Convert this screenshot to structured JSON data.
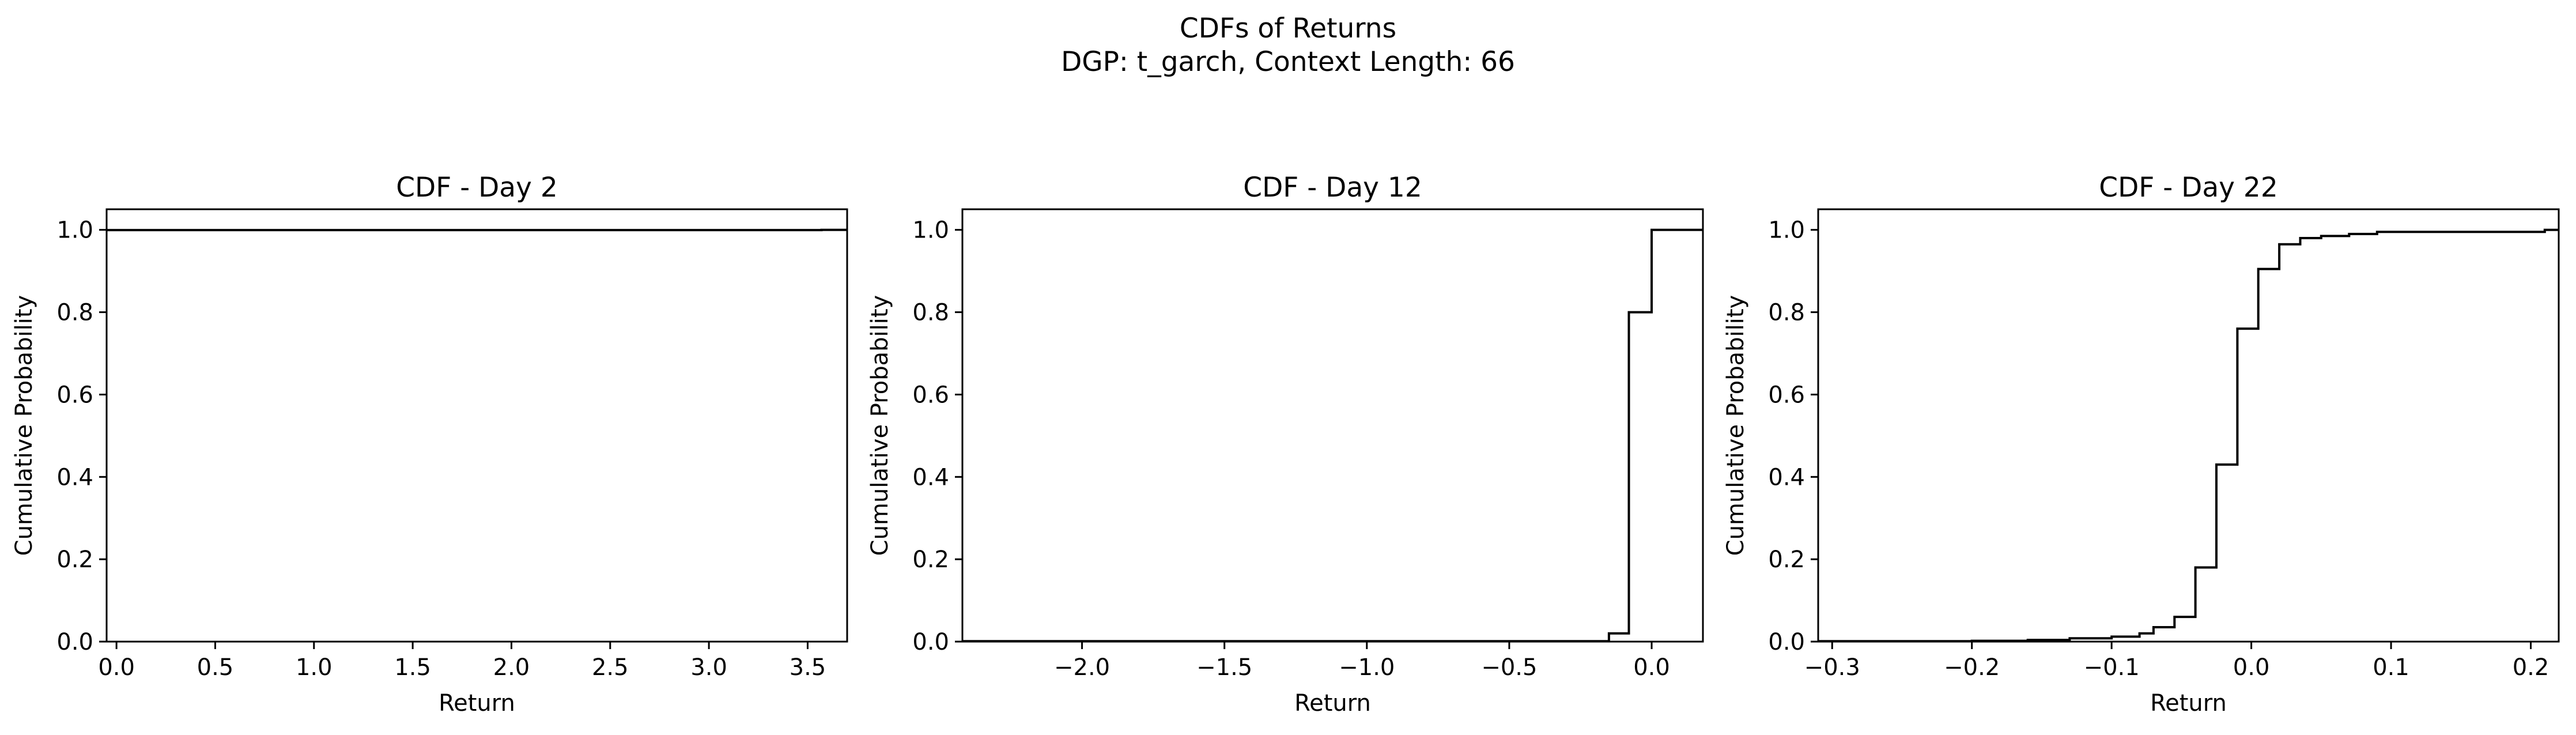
{
  "figure": {
    "title_line1": "CDFs of Returns",
    "title_line2": "DGP: t_garch, Context Length: 66"
  },
  "colors": {
    "line": "#000000",
    "axes": "#000000",
    "background": "#ffffff"
  },
  "chart_data": [
    {
      "type": "line",
      "step": true,
      "title": "CDF - Day 2",
      "xlabel": "Return",
      "ylabel": "Cumulative Probability",
      "xlim": [
        -0.05,
        3.7
      ],
      "ylim": [
        0.0,
        1.05
      ],
      "xticks": [
        0.0,
        0.5,
        1.0,
        1.5,
        2.0,
        2.5,
        3.0,
        3.5
      ],
      "xtick_labels": [
        "0.0",
        "0.5",
        "1.0",
        "1.5",
        "2.0",
        "2.5",
        "3.0",
        "3.5"
      ],
      "yticks": [
        0.0,
        0.2,
        0.4,
        0.6,
        0.8,
        1.0
      ],
      "ytick_labels": [
        "0.0",
        "0.2",
        "0.4",
        "0.6",
        "0.8",
        "1.0"
      ],
      "grid": false,
      "series": [
        {
          "x": [
            -0.05,
            0.0,
            3.57,
            3.7
          ],
          "y": [
            0.9995,
            0.9995,
            1.0,
            1.0
          ]
        }
      ]
    },
    {
      "type": "line",
      "step": true,
      "title": "CDF - Day 12",
      "xlabel": "Return",
      "ylabel": "Cumulative Probability",
      "xlim": [
        -2.42,
        0.18
      ],
      "ylim": [
        0.0,
        1.05
      ],
      "xticks": [
        -2.0,
        -1.5,
        -1.0,
        -0.5,
        0.0
      ],
      "xtick_labels": [
        "−2.0",
        "−1.5",
        "−1.0",
        "−0.5",
        "0.0"
      ],
      "yticks": [
        0.0,
        0.2,
        0.4,
        0.6,
        0.8,
        1.0
      ],
      "ytick_labels": [
        "0.0",
        "0.2",
        "0.4",
        "0.6",
        "0.8",
        "1.0"
      ],
      "grid": false,
      "series": [
        {
          "x": [
            -2.42,
            -2.3,
            -0.15,
            -0.08,
            0.0,
            0.15,
            0.18
          ],
          "y": [
            0.001,
            0.001,
            0.02,
            0.8,
            1.0,
            1.0,
            1.0
          ]
        }
      ]
    },
    {
      "type": "line",
      "step": true,
      "title": "CDF - Day 22",
      "xlabel": "Return",
      "ylabel": "Cumulative Probability",
      "xlim": [
        -0.31,
        0.22
      ],
      "ylim": [
        0.0,
        1.05
      ],
      "xticks": [
        -0.3,
        -0.2,
        -0.1,
        0.0,
        0.1,
        0.2
      ],
      "xtick_labels": [
        "−0.3",
        "−0.2",
        "−0.1",
        "0.0",
        "0.1",
        "0.2"
      ],
      "yticks": [
        0.0,
        0.2,
        0.4,
        0.6,
        0.8,
        1.0
      ],
      "ytick_labels": [
        "0.0",
        "0.2",
        "0.4",
        "0.6",
        "0.8",
        "1.0"
      ],
      "grid": false,
      "series": [
        {
          "x": [
            -0.31,
            -0.2,
            -0.16,
            -0.13,
            -0.1,
            -0.08,
            -0.07,
            -0.055,
            -0.04,
            -0.025,
            -0.01,
            0.005,
            0.02,
            0.035,
            0.05,
            0.07,
            0.09,
            0.21,
            0.22
          ],
          "y": [
            0.001,
            0.002,
            0.004,
            0.008,
            0.012,
            0.02,
            0.035,
            0.06,
            0.18,
            0.43,
            0.76,
            0.905,
            0.965,
            0.98,
            0.985,
            0.99,
            0.995,
            1.0,
            1.0
          ]
        }
      ]
    }
  ]
}
